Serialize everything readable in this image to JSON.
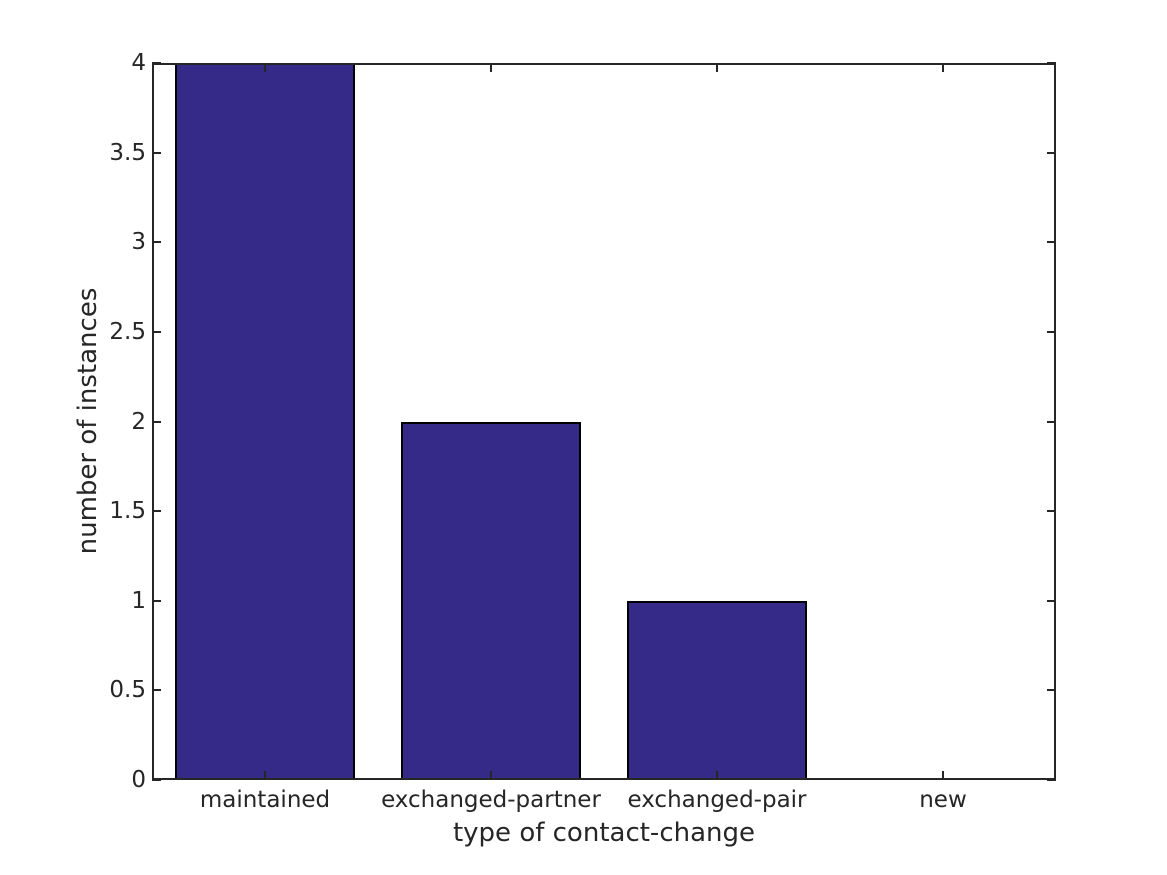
{
  "chart_data": {
    "type": "bar",
    "xlabel": "type of contact-change",
    "ylabel": "number of instances",
    "categories": [
      "maintained",
      "exchanged-partner",
      "exchanged-pair",
      "new"
    ],
    "values": [
      4,
      2,
      1,
      0
    ],
    "ylim": [
      0,
      4
    ],
    "yticks": [
      0,
      0.5,
      1,
      1.5,
      2,
      2.5,
      3,
      3.5,
      4
    ],
    "ytick_labels": [
      "0",
      "0.5",
      "1",
      "1.5",
      "2",
      "2.5",
      "3",
      "3.5",
      "4"
    ],
    "bar_width_fraction": 0.8,
    "grid": false,
    "legend": "none",
    "box": true,
    "colors": {
      "bar_fill": "#352a87",
      "bar_edge": "#000000",
      "axis": "#262626",
      "text": "#262626",
      "background": "#ffffff"
    }
  }
}
